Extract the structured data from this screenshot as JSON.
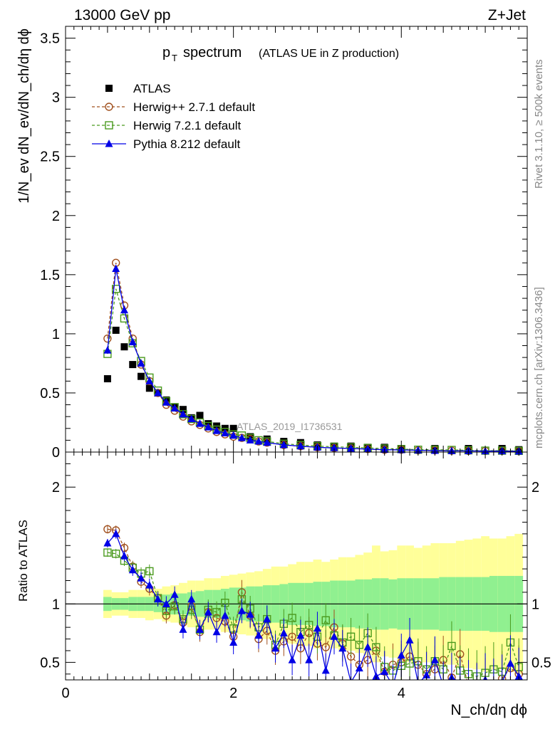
{
  "header": {
    "left_title": "13000 GeV pp",
    "right_title": "Z+Jet",
    "plot_title": "p",
    "plot_title_sub": "T",
    "plot_title_rest": "spectrum",
    "plot_title_paren": "(ATLAS UE in Z production)",
    "watermark": "ATLAS_2019_I1736531",
    "side_rivet": "Rivet 3.1.10, ≥ 500k events",
    "side_mcplots": "mcplots.cern.ch [arXiv:1306.3436]"
  },
  "labels": {
    "ylabel_main": "1/N_ev dN_ev/dN_ch/dη dϕ",
    "ylabel_ratio": "Ratio to ATLAS",
    "xlabel": "N_ch/dη dϕ"
  },
  "colors": {
    "atlas": "#000000",
    "herwig_pp": "#a0501e",
    "herwig7": "#4a9a1e",
    "pythia": "#0000e6",
    "band_inner": "#90f090",
    "band_outer": "#ffff99"
  },
  "chart_data": [
    {
      "type": "scatter",
      "title": "p_T spectrum (ATLAS UE in Z production)",
      "xlabel": "N_ch/dη dϕ",
      "ylabel": "1/N_ev dN_ev/dN_ch/dη dϕ",
      "xlim": [
        0,
        5.5
      ],
      "ylim": [
        0,
        3.6
      ],
      "xticks": [
        0,
        2,
        4
      ],
      "yticks": [
        0,
        0.5,
        1,
        1.5,
        2,
        2.5,
        3,
        3.5
      ],
      "legend_position": "top-left",
      "series": [
        {
          "name": "ATLAS",
          "key": "atlas",
          "x": [
            0.5,
            0.6,
            0.7,
            0.8,
            0.9,
            1.0,
            1.1,
            1.2,
            1.3,
            1.4,
            1.5,
            1.6,
            1.7,
            1.8,
            1.9,
            2.0,
            2.2,
            2.4,
            2.6,
            2.8,
            3.0,
            3.2,
            3.4,
            3.6,
            3.8,
            4.0,
            4.4,
            4.8,
            5.2,
            5.4
          ],
          "y": [
            0.62,
            1.03,
            0.89,
            0.74,
            0.64,
            0.54,
            0.5,
            0.44,
            0.38,
            0.36,
            0.29,
            0.31,
            0.24,
            0.22,
            0.2,
            0.2,
            0.13,
            0.11,
            0.09,
            0.08,
            0.06,
            0.05,
            0.05,
            0.04,
            0.04,
            0.03,
            0.03,
            0.03,
            0.03,
            0.02
          ]
        },
        {
          "name": "Herwig++ 2.7.1 default",
          "key": "herwig_pp",
          "x": [
            0.5,
            0.6,
            0.7,
            0.8,
            0.9,
            1.0,
            1.1,
            1.2,
            1.3,
            1.4,
            1.5,
            1.6,
            1.7,
            1.8,
            1.9,
            2.0,
            2.1,
            2.2,
            2.3,
            2.4,
            2.6,
            2.8,
            3.0,
            3.2,
            3.4,
            3.6,
            3.8,
            4.0,
            4.2,
            4.4,
            4.6,
            4.8,
            5.0,
            5.2,
            5.4
          ],
          "y": [
            0.96,
            1.6,
            1.24,
            0.96,
            0.74,
            0.6,
            0.5,
            0.4,
            0.35,
            0.3,
            0.26,
            0.23,
            0.2,
            0.17,
            0.15,
            0.13,
            0.12,
            0.11,
            0.09,
            0.08,
            0.06,
            0.05,
            0.04,
            0.035,
            0.03,
            0.025,
            0.02,
            0.02,
            0.015,
            0.015,
            0.012,
            0.01,
            0.01,
            0.01,
            0.008
          ]
        },
        {
          "name": "Herwig 7.2.1 default",
          "key": "herwig7",
          "x": [
            0.5,
            0.6,
            0.7,
            0.8,
            0.9,
            1.0,
            1.1,
            1.2,
            1.3,
            1.4,
            1.5,
            1.6,
            1.7,
            1.8,
            1.9,
            2.0,
            2.1,
            2.2,
            2.3,
            2.4,
            2.6,
            2.8,
            3.0,
            3.2,
            3.4,
            3.6,
            3.8,
            4.0,
            4.2,
            4.4,
            4.6,
            4.8,
            5.0,
            5.2,
            5.4
          ],
          "y": [
            0.83,
            1.38,
            1.13,
            0.92,
            0.77,
            0.63,
            0.52,
            0.43,
            0.38,
            0.32,
            0.28,
            0.25,
            0.22,
            0.19,
            0.17,
            0.15,
            0.14,
            0.12,
            0.1,
            0.09,
            0.07,
            0.06,
            0.05,
            0.045,
            0.04,
            0.035,
            0.03,
            0.025,
            0.02,
            0.02,
            0.018,
            0.015,
            0.012,
            0.012,
            0.01
          ]
        },
        {
          "name": "Pythia 8.212 default",
          "key": "pythia",
          "x": [
            0.5,
            0.6,
            0.7,
            0.8,
            0.9,
            1.0,
            1.1,
            1.2,
            1.3,
            1.4,
            1.5,
            1.6,
            1.7,
            1.8,
            1.9,
            2.0,
            2.1,
            2.2,
            2.3,
            2.4,
            2.6,
            2.8,
            3.0,
            3.2,
            3.4,
            3.6,
            3.8,
            4.0,
            4.2,
            4.4,
            4.6,
            4.8,
            5.0,
            5.2,
            5.4
          ],
          "y": [
            0.86,
            1.55,
            1.2,
            0.93,
            0.75,
            0.6,
            0.5,
            0.42,
            0.37,
            0.32,
            0.28,
            0.24,
            0.21,
            0.18,
            0.16,
            0.14,
            0.12,
            0.1,
            0.09,
            0.08,
            0.06,
            0.05,
            0.04,
            0.035,
            0.03,
            0.025,
            0.02,
            0.018,
            0.015,
            0.012,
            0.01,
            0.01,
            0.008,
            0.008,
            0.006
          ]
        }
      ]
    },
    {
      "type": "line",
      "title": "Ratio to ATLAS",
      "xlabel": "N_ch/dη dϕ",
      "ylabel": "Ratio to ATLAS",
      "xlim": [
        0,
        5.5
      ],
      "ylim": [
        0.35,
        2.3
      ],
      "xticks": [
        0,
        2,
        4
      ],
      "yticks": [
        0.5,
        1,
        2
      ],
      "reference_line": 1,
      "band": {
        "x_edges": [
          0.45,
          0.55,
          0.65,
          0.75,
          0.85,
          0.95,
          1.05,
          1.15,
          1.25,
          1.35,
          1.45,
          1.55,
          1.65,
          1.75,
          1.85,
          1.95,
          2.05,
          2.15,
          2.25,
          2.35,
          2.45,
          2.55,
          2.65,
          2.75,
          2.85,
          2.95,
          3.05,
          3.15,
          3.25,
          3.35,
          3.45,
          3.55,
          3.65,
          3.75,
          3.85,
          3.95,
          4.05,
          4.15,
          4.25,
          4.35,
          4.45,
          4.55,
          4.65,
          4.75,
          4.85,
          4.95,
          5.05,
          5.15,
          5.25,
          5.35,
          5.45
        ],
        "inner_half": [
          0.06,
          0.05,
          0.05,
          0.06,
          0.06,
          0.06,
          0.07,
          0.08,
          0.09,
          0.09,
          0.1,
          0.11,
          0.12,
          0.12,
          0.13,
          0.14,
          0.14,
          0.15,
          0.15,
          0.16,
          0.16,
          0.17,
          0.18,
          0.18,
          0.18,
          0.19,
          0.19,
          0.2,
          0.2,
          0.2,
          0.21,
          0.21,
          0.22,
          0.22,
          0.21,
          0.22,
          0.22,
          0.22,
          0.22,
          0.22,
          0.23,
          0.23,
          0.23,
          0.23,
          0.23,
          0.23,
          0.24,
          0.24,
          0.24,
          0.24
        ],
        "outer_half": [
          0.12,
          0.1,
          0.1,
          0.12,
          0.12,
          0.14,
          0.13,
          0.15,
          0.16,
          0.18,
          0.2,
          0.2,
          0.22,
          0.22,
          0.24,
          0.25,
          0.26,
          0.27,
          0.28,
          0.3,
          0.32,
          0.32,
          0.34,
          0.36,
          0.36,
          0.38,
          0.36,
          0.38,
          0.4,
          0.4,
          0.42,
          0.44,
          0.5,
          0.45,
          0.46,
          0.5,
          0.5,
          0.48,
          0.5,
          0.52,
          0.52,
          0.52,
          0.54,
          0.55,
          0.56,
          0.58,
          0.56,
          0.56,
          0.58,
          0.6
        ]
      },
      "series": [
        {
          "name": "Herwig++ 2.7.1 default",
          "key": "herwig_pp",
          "x": [
            0.5,
            0.6,
            0.7,
            0.8,
            0.9,
            1.0,
            1.1,
            1.2,
            1.3,
            1.4,
            1.5,
            1.6,
            1.7,
            1.8,
            1.9,
            2.0,
            2.1,
            2.2,
            2.3,
            2.4,
            2.5,
            2.6,
            2.7,
            2.8,
            2.9,
            3.0,
            3.1,
            3.2,
            3.3,
            3.4,
            3.5,
            3.6,
            3.7,
            3.8,
            3.9,
            4.0,
            4.1,
            4.2,
            4.3,
            4.4,
            4.5,
            4.6,
            4.7,
            4.8,
            4.9,
            5.0,
            5.1,
            5.2,
            5.3,
            5.4
          ],
          "y": [
            1.64,
            1.63,
            1.48,
            1.32,
            1.19,
            1.13,
            1.05,
            0.9,
            0.99,
            0.84,
            0.98,
            0.76,
            0.93,
            0.88,
            0.85,
            0.72,
            1.1,
            0.9,
            0.7,
            0.77,
            0.6,
            0.68,
            0.72,
            0.62,
            0.75,
            0.66,
            0.63,
            0.8,
            0.66,
            0.55,
            0.48,
            0.52,
            0.6,
            0.42,
            0.48,
            0.5,
            0.55,
            0.48,
            0.4,
            0.44,
            0.52,
            0.37,
            0.57,
            0.3,
            0.28,
            0.31,
            0.26,
            0.36,
            0.45,
            0.4
          ]
        },
        {
          "name": "Herwig 7.2.1 default",
          "key": "herwig7",
          "x": [
            0.5,
            0.6,
            0.7,
            0.8,
            0.9,
            1.0,
            1.1,
            1.2,
            1.3,
            1.4,
            1.5,
            1.6,
            1.7,
            1.8,
            1.9,
            2.0,
            2.1,
            2.2,
            2.3,
            2.4,
            2.5,
            2.6,
            2.7,
            2.8,
            2.9,
            3.0,
            3.1,
            3.2,
            3.3,
            3.4,
            3.5,
            3.6,
            3.7,
            3.8,
            3.9,
            4.0,
            4.1,
            4.2,
            4.3,
            4.4,
            4.5,
            4.6,
            4.7,
            4.8,
            4.9,
            5.0,
            5.1,
            5.2,
            5.3,
            5.4
          ],
          "y": [
            1.44,
            1.43,
            1.37,
            1.31,
            1.26,
            1.28,
            1.05,
            0.94,
            0.98,
            0.87,
            0.95,
            0.78,
            0.95,
            0.93,
            1.01,
            0.79,
            1.04,
            0.96,
            0.8,
            0.87,
            0.65,
            0.83,
            0.88,
            0.76,
            0.82,
            0.72,
            0.86,
            0.73,
            0.67,
            0.72,
            0.65,
            0.75,
            0.63,
            0.46,
            0.43,
            0.47,
            0.49,
            0.51,
            0.44,
            0.51,
            0.44,
            0.64,
            0.43,
            0.4,
            0.38,
            0.41,
            0.44,
            0.42,
            0.67,
            0.46
          ]
        },
        {
          "name": "Pythia 8.212 default",
          "key": "pythia",
          "x": [
            0.5,
            0.6,
            0.7,
            0.8,
            0.9,
            1.0,
            1.1,
            1.2,
            1.3,
            1.4,
            1.5,
            1.6,
            1.7,
            1.8,
            1.9,
            2.0,
            2.1,
            2.2,
            2.3,
            2.4,
            2.5,
            2.6,
            2.7,
            2.8,
            2.9,
            3.0,
            3.1,
            3.2,
            3.3,
            3.4,
            3.5,
            3.6,
            3.7,
            3.8,
            3.9,
            4.0,
            4.1,
            4.2,
            4.3,
            4.4,
            4.5,
            4.6,
            4.7,
            4.8,
            4.9,
            5.0,
            5.1,
            5.2,
            5.3,
            5.4
          ],
          "y": [
            1.52,
            1.6,
            1.41,
            1.29,
            1.22,
            1.16,
            1.04,
            1.0,
            1.08,
            0.78,
            1.04,
            0.78,
            0.93,
            0.76,
            0.9,
            0.67,
            0.94,
            0.91,
            0.73,
            0.87,
            0.62,
            0.75,
            0.52,
            0.73,
            0.52,
            0.79,
            0.43,
            0.72,
            0.62,
            0.33,
            0.45,
            0.63,
            0.38,
            0.42,
            0.3,
            0.56,
            0.69,
            0.32,
            0.39,
            0.52,
            0.3,
            0.37,
            0.33,
            0.3,
            0.27,
            0.35,
            0.3,
            0.33,
            0.49,
            0.38
          ]
        }
      ]
    }
  ]
}
